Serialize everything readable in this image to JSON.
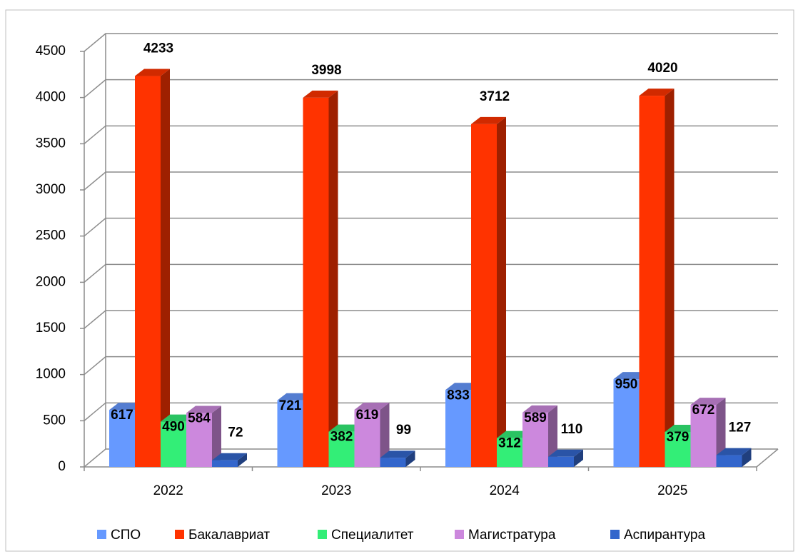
{
  "chart_data": {
    "type": "bar",
    "categories": [
      "2022",
      "2023",
      "2024",
      "2025"
    ],
    "series": [
      {
        "name": "СПО",
        "color": "#6699ff",
        "values": [
          617,
          721,
          833,
          950
        ]
      },
      {
        "name": "Бакалавриат",
        "color": "#ff3300",
        "values": [
          4233,
          3998,
          3712,
          4020
        ]
      },
      {
        "name": "Специалитет",
        "color": "#33ee77",
        "values": [
          490,
          382,
          312,
          379
        ]
      },
      {
        "name": "Магистратура",
        "color": "#cc88dd",
        "values": [
          584,
          619,
          589,
          672
        ]
      },
      {
        "name": "Аспирантура",
        "color": "#3366cc",
        "values": [
          72,
          99,
          110,
          127
        ]
      }
    ],
    "ylim": [
      0,
      4500
    ],
    "yticks": [
      0,
      500,
      1000,
      1500,
      2000,
      2500,
      3000,
      3500,
      4000,
      4500
    ],
    "grid": true,
    "legend": "bottom"
  }
}
